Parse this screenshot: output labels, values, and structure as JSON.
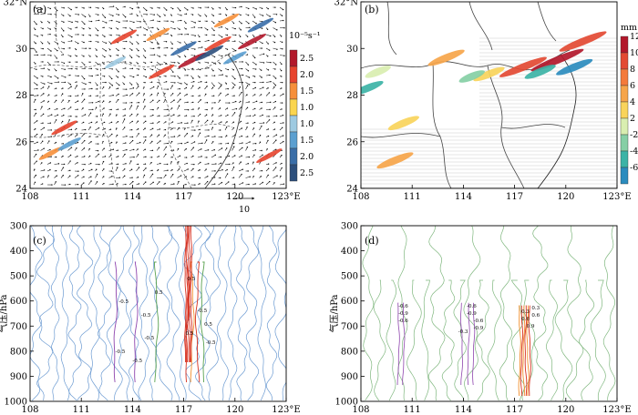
{
  "panels": {
    "a": {
      "label": "(a)",
      "unit": "10⁻⁵s⁻¹",
      "ref_label": "10"
    },
    "b": {
      "label": "(b)",
      "unit": "mm"
    },
    "c": {
      "label": "(c)"
    },
    "d": {
      "label": "(d)"
    }
  },
  "colors": {
    "red": "#d7301f",
    "orange": "#f28e2b",
    "yellow": "#f6d246",
    "lightblue": "#9ecae1",
    "blue": "#4a90c8",
    "darkblue": "#2c4f7c",
    "green": "#59a14f",
    "purple": "#8e44ad",
    "contour_blue": "#6c9bd2",
    "contour_green": "#7fb77e"
  },
  "chart_data": [
    {
      "id": "a",
      "type": "heatmap",
      "title": "",
      "x_ticks": [
        "108",
        "111",
        "114",
        "117",
        "120",
        "123°E"
      ],
      "y_ticks": [
        "32°N",
        "30",
        "28",
        "26",
        "24"
      ],
      "xlim": [
        108,
        123
      ],
      "ylim": [
        24,
        32
      ],
      "colorbar": {
        "unit": "10⁻⁵s⁻¹",
        "levels": [
          "2.5",
          "2.0",
          "1.5",
          "1.0",
          "1.0",
          "1.5",
          "2.0",
          "2.5"
        ],
        "colors": [
          "#b2182b",
          "#e7442e",
          "#f68f3a",
          "#fbd54e",
          "#9ecae1",
          "#5b9fd0",
          "#3a6ea8",
          "#2c4f7c"
        ]
      },
      "vector_reference": "10",
      "features": [
        {
          "lon": 113.5,
          "lat": 30.5,
          "v": 2.0
        },
        {
          "lon": 115.5,
          "lat": 30.6,
          "v": 1.5
        },
        {
          "lon": 117.5,
          "lat": 29.5,
          "v": 2.5
        },
        {
          "lon": 119.0,
          "lat": 30.2,
          "v": 2.2
        },
        {
          "lon": 119.5,
          "lat": 31.2,
          "v": 1.8
        },
        {
          "lon": 121.0,
          "lat": 30.3,
          "v": 2.5
        },
        {
          "lon": 117.0,
          "lat": 30.0,
          "v": -2.0
        },
        {
          "lon": 118.5,
          "lat": 29.8,
          "v": -2.5
        },
        {
          "lon": 120.0,
          "lat": 29.6,
          "v": -1.5
        },
        {
          "lon": 121.5,
          "lat": 31.0,
          "v": -2.0
        },
        {
          "lon": 110.0,
          "lat": 26.6,
          "v": 2.0
        },
        {
          "lon": 109.2,
          "lat": 25.5,
          "v": 1.5
        },
        {
          "lon": 110.3,
          "lat": 25.9,
          "v": -1.5
        },
        {
          "lon": 122.0,
          "lat": 25.4,
          "v": 2.0
        },
        {
          "lon": 115.7,
          "lat": 29.0,
          "v": 2.0
        },
        {
          "lon": 113.0,
          "lat": 29.4,
          "v": -1.0
        }
      ]
    },
    {
      "id": "b",
      "type": "heatmap",
      "title": "",
      "x_ticks": [
        "108",
        "111",
        "114",
        "117",
        "120",
        "123°E"
      ],
      "y_ticks": [
        "32°N",
        "30",
        "28",
        "26",
        "24"
      ],
      "xlim": [
        108,
        123
      ],
      "ylim": [
        24,
        32
      ],
      "colorbar": {
        "unit": "mm",
        "levels": [
          "12",
          "10",
          "8",
          "6",
          "4",
          "2",
          "-2",
          "-4",
          "-6"
        ],
        "colors": [
          "#b2182b",
          "#e34a33",
          "#f47a3b",
          "#f6a54a",
          "#f9d45b",
          "#d9eeb0",
          "#86cfa5",
          "#3cb3a6",
          "#2b8cbe"
        ]
      },
      "features": [
        {
          "lon": 113.0,
          "lat": 29.6,
          "v": 6
        },
        {
          "lon": 115.5,
          "lat": 28.9,
          "v": 4
        },
        {
          "lon": 117.5,
          "lat": 29.2,
          "v": 10
        },
        {
          "lon": 119.5,
          "lat": 29.5,
          "v": 12
        },
        {
          "lon": 121.0,
          "lat": 30.3,
          "v": 10
        },
        {
          "lon": 118.5,
          "lat": 29.0,
          "v": -4
        },
        {
          "lon": 120.5,
          "lat": 29.2,
          "v": -6
        },
        {
          "lon": 114.5,
          "lat": 28.8,
          "v": -2
        },
        {
          "lon": 110.5,
          "lat": 26.8,
          "v": 4
        },
        {
          "lon": 110.0,
          "lat": 25.2,
          "v": 6
        },
        {
          "lon": 108.4,
          "lat": 28.3,
          "v": -4
        },
        {
          "lon": 109.0,
          "lat": 29.0,
          "v": 2
        }
      ]
    },
    {
      "id": "c",
      "type": "line",
      "xlabel": "",
      "ylabel": "气压/hPa",
      "x_ticks": [
        "108",
        "111",
        "114",
        "117",
        "120",
        "123°E"
      ],
      "y_ticks": [
        "300",
        "400",
        "500",
        "600",
        "700",
        "800",
        "900",
        "1000"
      ],
      "xlim": [
        108,
        123
      ],
      "ylim": [
        300,
        1000
      ],
      "contour_labels": [
        "-0.5",
        "-0.5",
        "0.5",
        "-0.5",
        "0.5",
        "-0.5",
        "0.5",
        "0.5",
        "-0.5",
        "-0.5",
        "-0.5"
      ]
    },
    {
      "id": "d",
      "type": "line",
      "xlabel": "",
      "ylabel": "气压/hPa",
      "x_ticks": [
        "108",
        "111",
        "114",
        "117",
        "120",
        "123°E"
      ],
      "y_ticks": [
        "300",
        "400",
        "500",
        "600",
        "700",
        "800",
        "900",
        "1000"
      ],
      "xlim": [
        108,
        123
      ],
      "ylim": [
        300,
        1000
      ],
      "contour_labels": [
        "-0.6",
        "-0.9",
        "-0.6",
        "-0.6",
        "-0.9",
        "-0.3",
        "-0.6",
        "-0.9",
        "0.3",
        "0.6",
        "0.3",
        "0.6",
        "0.9"
      ]
    }
  ]
}
